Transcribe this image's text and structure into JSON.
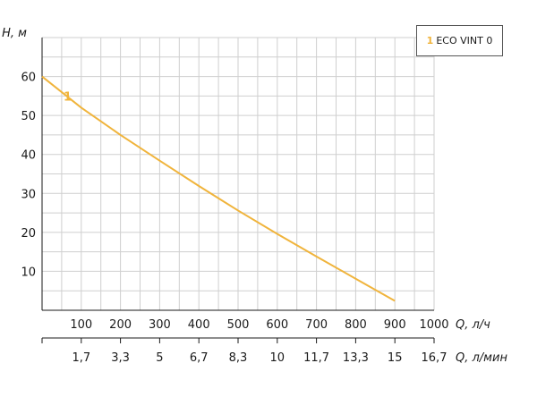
{
  "chart_data": {
    "type": "line",
    "title": "",
    "ylabel": "H, м",
    "xlabel": "Q, л/ч",
    "x2label": "Q, л/мин",
    "xlim": [
      0,
      1000
    ],
    "ylim": [
      0,
      70
    ],
    "y_ticks": [
      10,
      20,
      30,
      40,
      50,
      60
    ],
    "x_ticks": [
      100,
      200,
      300,
      400,
      500,
      600,
      700,
      800,
      900,
      1000
    ],
    "x2_ticks": [
      "1,7",
      "3,3",
      "5",
      "6,7",
      "8,3",
      "10",
      "11,7",
      "13,3",
      "15",
      "16,7"
    ],
    "grid": true,
    "legend_position": "top-right",
    "series": [
      {
        "name": "ECO VINT 0",
        "label": "1",
        "color": "#f0b43c",
        "x": [
          0,
          100,
          200,
          300,
          400,
          500,
          600,
          700,
          800,
          900
        ],
        "y": [
          60,
          52,
          45,
          38.4,
          31.9,
          25.6,
          19.6,
          13.8,
          8.1,
          2.4
        ]
      }
    ]
  }
}
